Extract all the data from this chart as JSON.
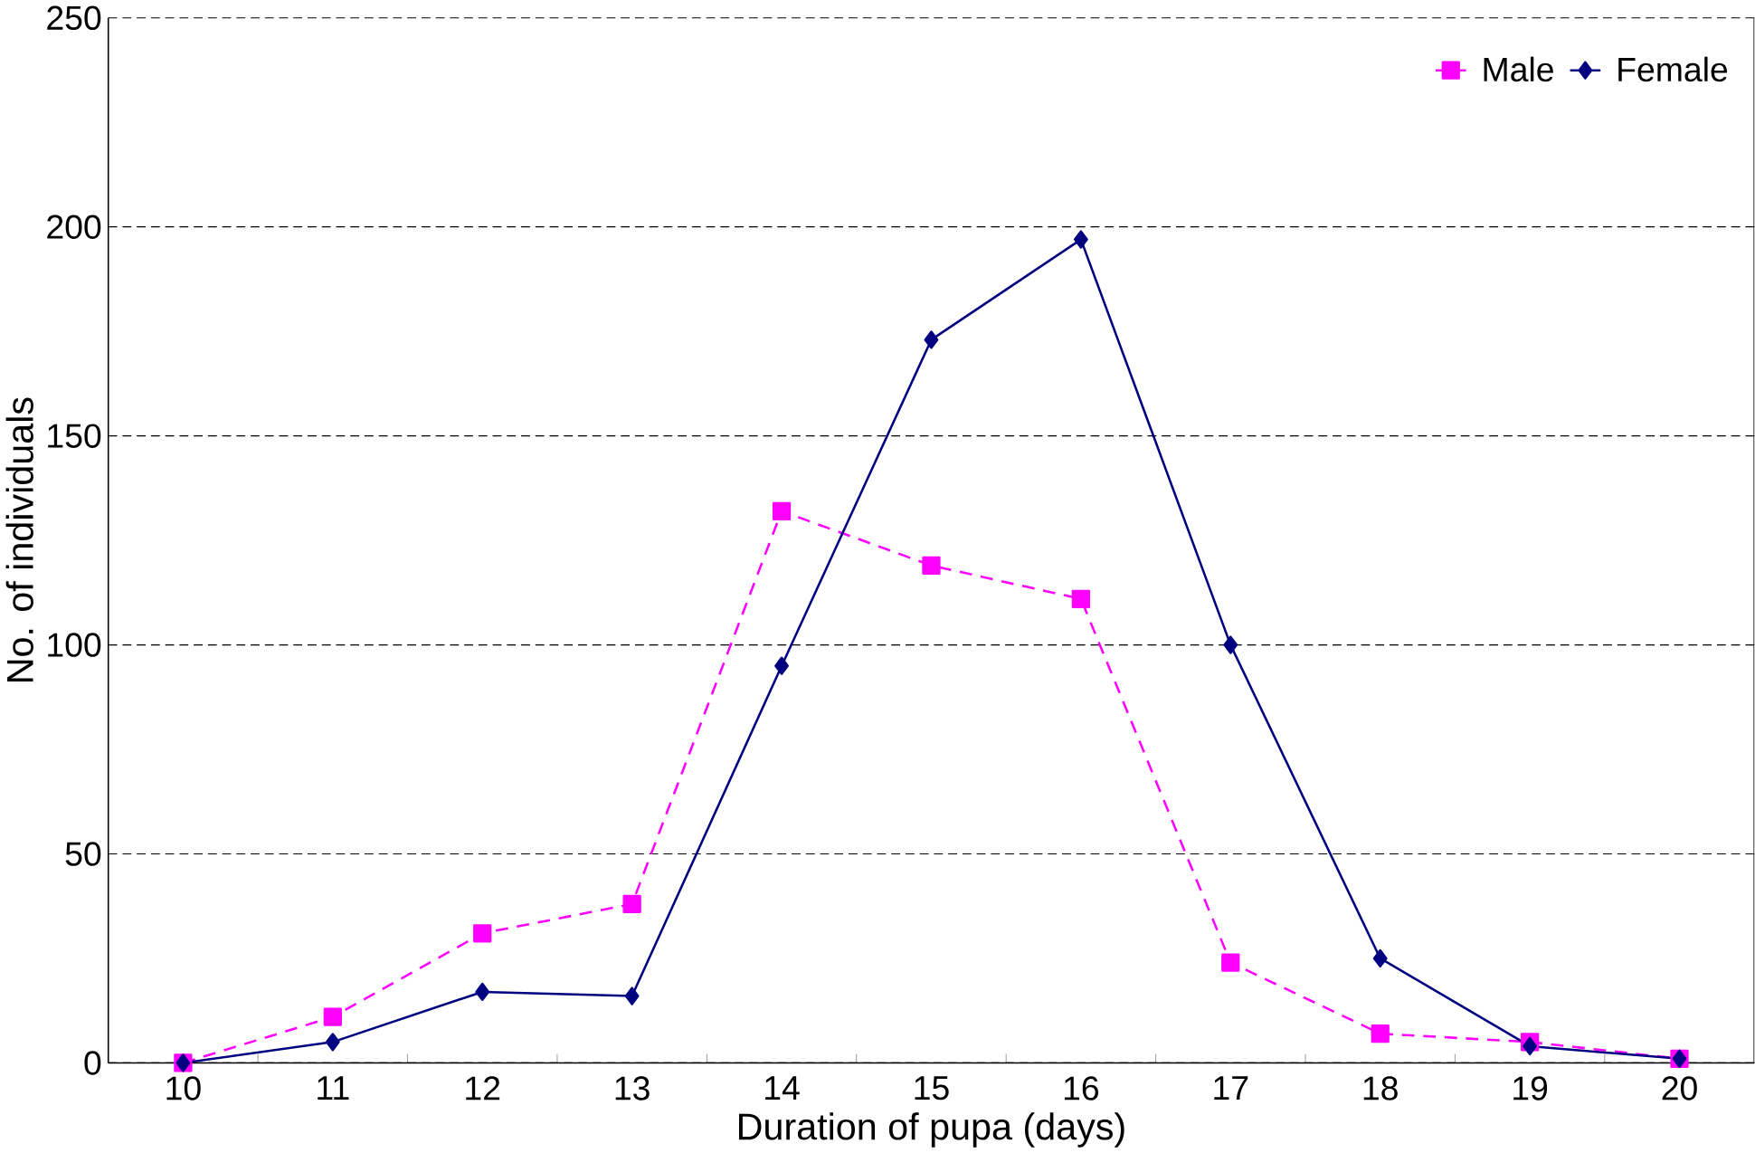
{
  "chart_data": {
    "type": "line",
    "xlabel": "Duration of pupa (days)",
    "ylabel": "No. of individuals",
    "categories": [
      "10",
      "11",
      "12",
      "13",
      "14",
      "15",
      "16",
      "17",
      "18",
      "19",
      "20"
    ],
    "series": [
      {
        "name": "Female",
        "color": "#000080",
        "marker": "diamond",
        "line_style": "solid",
        "values": [
          0,
          5,
          17,
          16,
          95,
          173,
          197,
          100,
          25,
          4,
          1
        ]
      },
      {
        "name": "Male",
        "color": "#ff00ff",
        "marker": "square",
        "line_style": "dashed",
        "values": [
          0,
          11,
          31,
          38,
          132,
          119,
          111,
          24,
          7,
          5,
          1
        ]
      }
    ],
    "ylim": [
      0,
      250
    ],
    "yticks": [
      0,
      50,
      100,
      150,
      200,
      250
    ],
    "grid": "y",
    "legend": "top right"
  }
}
